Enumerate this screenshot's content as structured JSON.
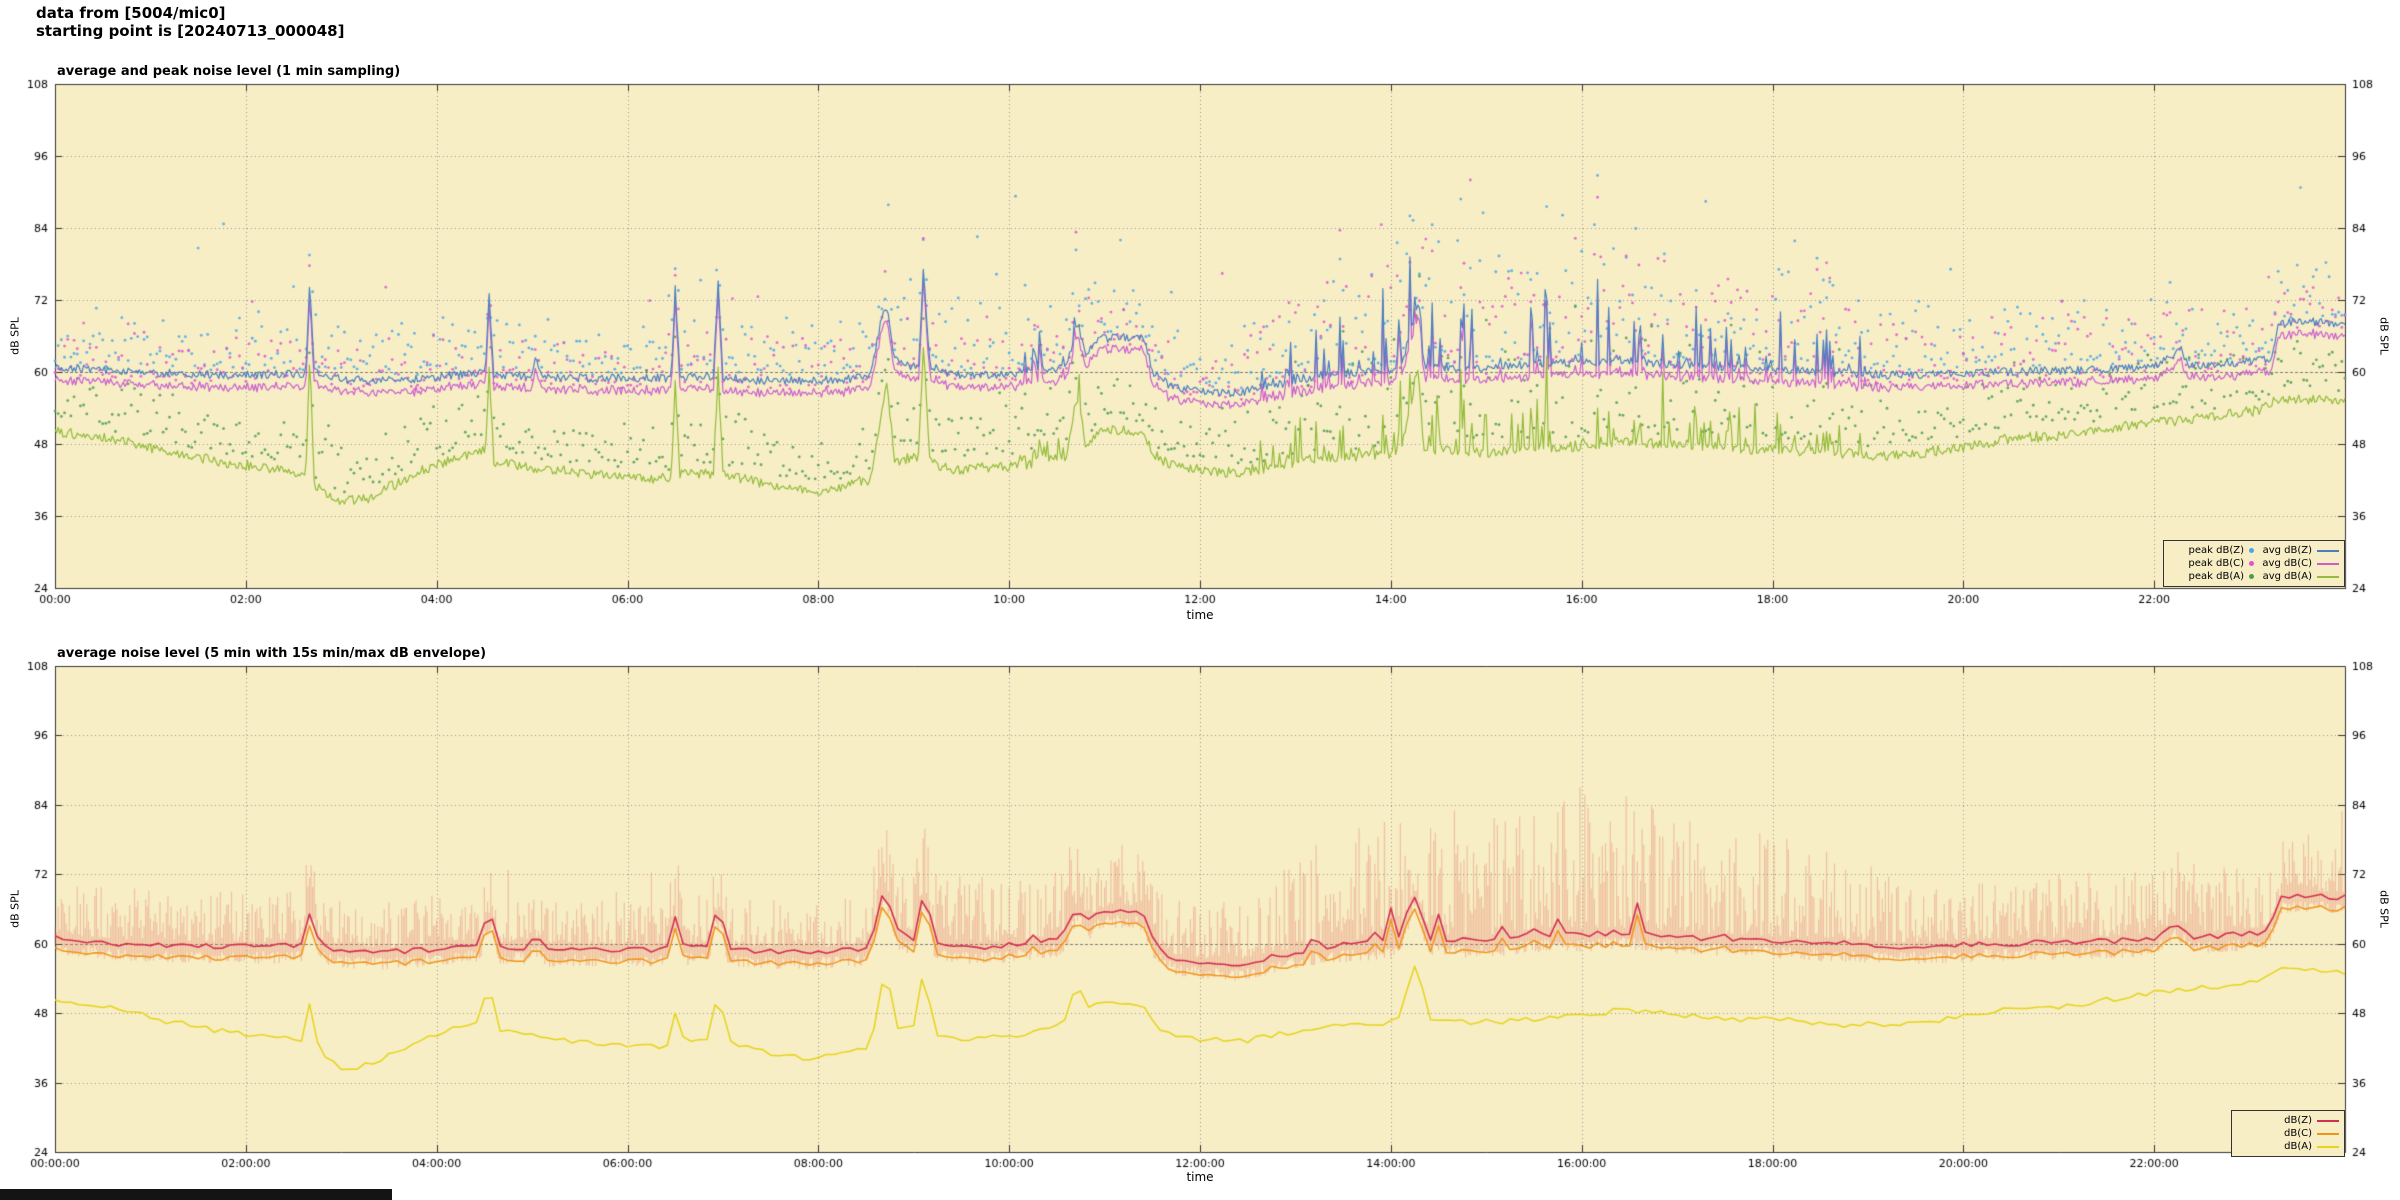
{
  "header": {
    "line1": "data from [5004/mic0]",
    "line2": "starting point is [20240713_000048]"
  },
  "style": {
    "plot_bg": "#f7eec6",
    "grid": "#98988a",
    "axis": "#333333",
    "envelope": "rgba(230,125,105,0.40)",
    "text": "#000000"
  },
  "chart1": {
    "title": "average and peak noise level (1 min sampling)",
    "xlabel": "time",
    "ylabel": "dB SPL",
    "legend": [
      {
        "label": "peak dB(Z)",
        "marker": "dot",
        "color": "#49a6e8"
      },
      {
        "label": "peak dB(C)",
        "marker": "dot",
        "color": "#e353ce"
      },
      {
        "label": "peak dB(A)",
        "marker": "dot",
        "color": "#4e9b4e"
      },
      {
        "label": "avg dB(Z)",
        "marker": "line",
        "color": "#4b7fc0"
      },
      {
        "label": "avg dB(C)",
        "marker": "line",
        "color": "#cc5ecf"
      },
      {
        "label": "avg dB(A)",
        "marker": "line",
        "color": "#93bc3a"
      }
    ]
  },
  "chart2": {
    "title": "average noise level (5 min with 15s min/max dB envelope)",
    "xlabel": "time",
    "ylabel": "dB SPL",
    "legend": [
      {
        "label": "dB(Z)",
        "marker": "line",
        "color": "#d23050"
      },
      {
        "label": "dB(C)",
        "marker": "line",
        "color": "#f29418"
      },
      {
        "label": "dB(A)",
        "marker": "line",
        "color": "#e6d417"
      }
    ]
  },
  "chart_data": [
    {
      "type": "line+scatter",
      "title": "average and peak noise level (1 min sampling)",
      "xlabel": "time",
      "ylabel": "dB SPL",
      "xlim_hours": [
        0,
        24
      ],
      "ylim": [
        24,
        108
      ],
      "grid": true,
      "legend_position": "bottom-right",
      "x_tick_labels": [
        "00:00",
        "02:00",
        "04:00",
        "06:00",
        "08:00",
        "10:00",
        "12:00",
        "14:00",
        "16:00",
        "18:00",
        "20:00",
        "22:00"
      ],
      "y_ticks": [
        24,
        36,
        48,
        60,
        72,
        84,
        96,
        108
      ],
      "series_info": [
        {
          "name": "peak dB(Z)",
          "type": "scatter",
          "note": "per-minute peak, scattered 2-25 dB above avg dB(Z)"
        },
        {
          "name": "peak dB(C)",
          "type": "scatter",
          "note": "per-minute peak, scattered 2-20 dB above avg dB(C)"
        },
        {
          "name": "peak dB(A)",
          "type": "scatter",
          "note": "per-minute peak, scattered 2-15 dB above avg dB(A)"
        },
        {
          "name": "avg dB(Z)",
          "type": "line"
        },
        {
          "name": "avg dB(C)",
          "type": "line",
          "note": "tracks avg dB(Z) about 2 dB lower"
        },
        {
          "name": "avg dB(A)",
          "type": "line"
        }
      ],
      "avg_dbc_offset": -2,
      "keypoints": {
        "avg_dbz": [
          [
            0,
            61
          ],
          [
            0.3,
            60.5
          ],
          [
            0.7,
            60
          ],
          [
            1.2,
            59.8
          ],
          [
            1.7,
            59.5
          ],
          [
            2.2,
            59.5
          ],
          [
            2.63,
            59.8
          ],
          [
            2.67,
            75
          ],
          [
            2.72,
            60
          ],
          [
            3,
            58.8
          ],
          [
            3.4,
            58.5
          ],
          [
            3.8,
            58.8
          ],
          [
            4.2,
            59.5
          ],
          [
            4.51,
            60
          ],
          [
            4.55,
            73
          ],
          [
            4.6,
            59.5
          ],
          [
            5,
            59.3
          ],
          [
            5.04,
            63
          ],
          [
            5.09,
            59
          ],
          [
            5.5,
            59
          ],
          [
            6,
            59
          ],
          [
            6.46,
            59
          ],
          [
            6.5,
            74
          ],
          [
            6.55,
            59.2
          ],
          [
            6.9,
            59.3
          ],
          [
            6.95,
            75
          ],
          [
            7,
            59
          ],
          [
            7.4,
            58.6
          ],
          [
            7.9,
            58.5
          ],
          [
            8.3,
            58.8
          ],
          [
            8.55,
            59.5
          ],
          [
            8.65,
            68
          ],
          [
            8.72,
            71
          ],
          [
            8.8,
            62
          ],
          [
            8.95,
            61
          ],
          [
            9.05,
            61
          ],
          [
            9.1,
            77
          ],
          [
            9.17,
            61
          ],
          [
            9.4,
            59.5
          ],
          [
            9.8,
            59.5
          ],
          [
            10.2,
            60
          ],
          [
            10.6,
            61
          ],
          [
            10.72,
            68
          ],
          [
            10.8,
            63
          ],
          [
            10.95,
            65.5
          ],
          [
            11.2,
            65.8
          ],
          [
            11.42,
            65.5
          ],
          [
            11.5,
            60
          ],
          [
            11.7,
            57.5
          ],
          [
            12,
            56.8
          ],
          [
            12.4,
            56.5
          ],
          [
            12.7,
            57.5
          ],
          [
            13,
            58.5
          ],
          [
            13.3,
            59.5
          ],
          [
            13.7,
            60
          ],
          [
            14.1,
            60.5
          ],
          [
            14.28,
            71
          ],
          [
            14.35,
            61
          ],
          [
            14.8,
            60.5
          ],
          [
            15.2,
            61
          ],
          [
            15.6,
            61.5
          ],
          [
            16,
            61.5
          ],
          [
            16.4,
            62
          ],
          [
            16.8,
            61.5
          ],
          [
            17.2,
            61
          ],
          [
            17.6,
            60.8
          ],
          [
            18,
            60.5
          ],
          [
            18.4,
            60
          ],
          [
            18.8,
            59.8
          ],
          [
            19.2,
            59.5
          ],
          [
            19.6,
            59.5
          ],
          [
            20,
            59.8
          ],
          [
            20.4,
            60
          ],
          [
            20.8,
            60.2
          ],
          [
            21.2,
            60.3
          ],
          [
            21.6,
            60.5
          ],
          [
            22,
            60.8
          ],
          [
            22.28,
            64
          ],
          [
            22.35,
            61
          ],
          [
            22.8,
            61.5
          ],
          [
            23.1,
            62
          ],
          [
            23.22,
            62
          ],
          [
            23.3,
            68
          ],
          [
            23.55,
            68.5
          ],
          [
            23.8,
            68.2
          ],
          [
            24,
            68
          ]
        ],
        "avg_dba": [
          [
            0,
            50
          ],
          [
            0.3,
            49.5
          ],
          [
            0.7,
            48.5
          ],
          [
            1.2,
            46.5
          ],
          [
            1.7,
            45
          ],
          [
            2.2,
            44
          ],
          [
            2.63,
            43
          ],
          [
            2.67,
            62
          ],
          [
            2.72,
            41
          ],
          [
            3,
            38.5
          ],
          [
            3.3,
            39
          ],
          [
            3.6,
            41.5
          ],
          [
            4,
            44.5
          ],
          [
            4.3,
            46
          ],
          [
            4.51,
            47
          ],
          [
            4.55,
            60
          ],
          [
            4.6,
            45
          ],
          [
            5,
            44
          ],
          [
            5.5,
            43
          ],
          [
            6,
            42.5
          ],
          [
            6.46,
            42
          ],
          [
            6.5,
            58
          ],
          [
            6.55,
            43
          ],
          [
            6.9,
            43
          ],
          [
            6.95,
            60
          ],
          [
            7,
            43
          ],
          [
            7.4,
            41.5
          ],
          [
            7.9,
            40
          ],
          [
            8.3,
            41
          ],
          [
            8.55,
            42
          ],
          [
            8.72,
            58
          ],
          [
            8.8,
            45
          ],
          [
            9.05,
            46
          ],
          [
            9.1,
            64
          ],
          [
            9.17,
            45
          ],
          [
            9.4,
            43.5
          ],
          [
            9.8,
            44
          ],
          [
            10.2,
            44.5
          ],
          [
            10.6,
            46
          ],
          [
            10.72,
            56
          ],
          [
            10.8,
            48
          ],
          [
            10.95,
            50
          ],
          [
            11.2,
            50
          ],
          [
            11.42,
            49.5
          ],
          [
            11.5,
            46
          ],
          [
            11.7,
            44.5
          ],
          [
            12,
            43.5
          ],
          [
            12.4,
            43
          ],
          [
            12.7,
            44
          ],
          [
            13,
            45
          ],
          [
            13.3,
            45.5
          ],
          [
            13.7,
            46
          ],
          [
            14.1,
            46.5
          ],
          [
            14.28,
            60
          ],
          [
            14.35,
            47
          ],
          [
            14.8,
            46.5
          ],
          [
            15.2,
            46.5
          ],
          [
            15.6,
            47
          ],
          [
            16,
            47.5
          ],
          [
            16.4,
            48.5
          ],
          [
            16.8,
            48
          ],
          [
            17.2,
            47.5
          ],
          [
            17.6,
            47
          ],
          [
            18,
            47
          ],
          [
            18.4,
            46.5
          ],
          [
            18.8,
            46
          ],
          [
            19.2,
            46
          ],
          [
            19.6,
            46.5
          ],
          [
            20,
            47.5
          ],
          [
            20.4,
            48.5
          ],
          [
            20.8,
            49
          ],
          [
            21.2,
            49.5
          ],
          [
            21.6,
            50.5
          ],
          [
            22,
            51.5
          ],
          [
            22.4,
            52
          ],
          [
            22.8,
            53
          ],
          [
            23.1,
            53.5
          ],
          [
            23.3,
            55.5
          ],
          [
            23.55,
            55.5
          ],
          [
            24,
            55
          ]
        ]
      },
      "activity_keypoints": [
        [
          0,
          3
        ],
        [
          1,
          3
        ],
        [
          2,
          3
        ],
        [
          3,
          2.5
        ],
        [
          4,
          3
        ],
        [
          5,
          2.5
        ],
        [
          6,
          2.5
        ],
        [
          7,
          3
        ],
        [
          8,
          3
        ],
        [
          9,
          4
        ],
        [
          10,
          4.5
        ],
        [
          10.5,
          5
        ],
        [
          11,
          4
        ],
        [
          11.5,
          3.5
        ],
        [
          12,
          3
        ],
        [
          12.5,
          4
        ],
        [
          13,
          6
        ],
        [
          13.5,
          8
        ],
        [
          14,
          9
        ],
        [
          14.5,
          9
        ],
        [
          15,
          8.5
        ],
        [
          15.5,
          9
        ],
        [
          16,
          10
        ],
        [
          16.5,
          9.5
        ],
        [
          17,
          9
        ],
        [
          17.5,
          8
        ],
        [
          18,
          7
        ],
        [
          18.5,
          6
        ],
        [
          19,
          4.5
        ],
        [
          19.5,
          3.5
        ],
        [
          20,
          3.5
        ],
        [
          20.5,
          3.5
        ],
        [
          21,
          4
        ],
        [
          21.5,
          4
        ],
        [
          22,
          4
        ],
        [
          22.5,
          4.5
        ],
        [
          23,
          3.5
        ],
        [
          23.5,
          3
        ],
        [
          24,
          3
        ]
      ]
    },
    {
      "type": "line",
      "title": "average noise level (5 min with 15s min/max dB envelope)",
      "xlabel": "time",
      "ylabel": "dB SPL",
      "xlim_hours": [
        0,
        24
      ],
      "ylim": [
        24,
        108
      ],
      "grid": true,
      "legend_position": "bottom-right",
      "x_tick_labels": [
        "00:00:00",
        "02:00:00",
        "04:00:00",
        "06:00:00",
        "08:00:00",
        "10:00:00",
        "12:00:00",
        "14:00:00",
        "16:00:00",
        "18:00:00",
        "20:00:00",
        "22:00:00"
      ],
      "y_ticks": [
        24,
        36,
        48,
        60,
        72,
        84,
        96,
        108
      ],
      "series_info": [
        {
          "name": "dB(Z)",
          "type": "line",
          "note": "5-min smoothed version of chart-1 avg dB(Z) keypoints"
        },
        {
          "name": "dB(C)",
          "type": "line",
          "note": "tracks dB(Z) about 2 dB lower"
        },
        {
          "name": "dB(A)",
          "type": "line",
          "note": "5-min smoothed version of chart-1 avg dB(A) keypoints"
        }
      ],
      "envelope_info": "15s min/max envelope around dB(Z); max reaches ~72 dB at night and ~85 dB during 13:00-18:00 busy period"
    }
  ]
}
